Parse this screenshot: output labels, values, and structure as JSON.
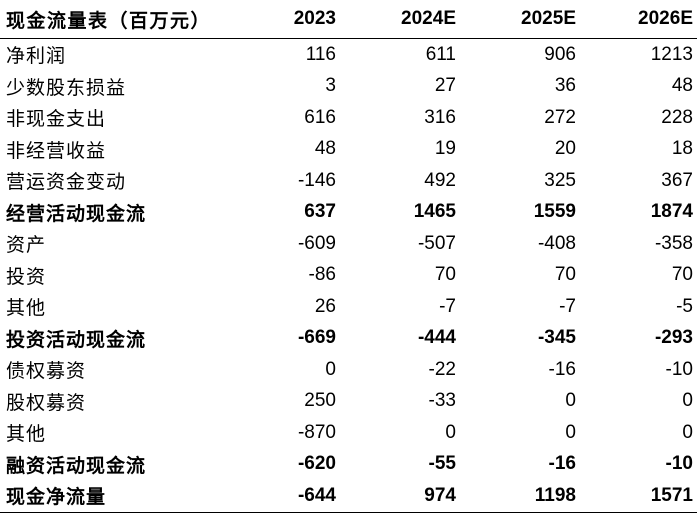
{
  "header": {
    "label": "现金流量表（百万元）",
    "years": [
      "2023",
      "2024E",
      "2025E",
      "2026E"
    ]
  },
  "rows": [
    {
      "label": "净利润",
      "values": [
        "116",
        "611",
        "906",
        "1213"
      ],
      "bold": false
    },
    {
      "label": "少数股东损益",
      "values": [
        "3",
        "27",
        "36",
        "48"
      ],
      "bold": false
    },
    {
      "label": "非现金支出",
      "values": [
        "616",
        "316",
        "272",
        "228"
      ],
      "bold": false
    },
    {
      "label": "非经营收益",
      "values": [
        "48",
        "19",
        "20",
        "18"
      ],
      "bold": false
    },
    {
      "label": "营运资金变动",
      "values": [
        "-146",
        "492",
        "325",
        "367"
      ],
      "bold": false
    },
    {
      "label": "经营活动现金流",
      "values": [
        "637",
        "1465",
        "1559",
        "1874"
      ],
      "bold": true
    },
    {
      "label": "资产",
      "values": [
        "-609",
        "-507",
        "-408",
        "-358"
      ],
      "bold": false
    },
    {
      "label": "投资",
      "values": [
        "-86",
        "70",
        "70",
        "70"
      ],
      "bold": false
    },
    {
      "label": "其他",
      "values": [
        "26",
        "-7",
        "-7",
        "-5"
      ],
      "bold": false
    },
    {
      "label": "投资活动现金流",
      "values": [
        "-669",
        "-444",
        "-345",
        "-293"
      ],
      "bold": true
    },
    {
      "label": "债权募资",
      "values": [
        "0",
        "-22",
        "-16",
        "-10"
      ],
      "bold": false
    },
    {
      "label": "股权募资",
      "values": [
        "250",
        "-33",
        "0",
        "0"
      ],
      "bold": false
    },
    {
      "label": "其他",
      "values": [
        "-870",
        "0",
        "0",
        "0"
      ],
      "bold": false
    },
    {
      "label": "融资活动现金流",
      "values": [
        "-620",
        "-55",
        "-16",
        "-10"
      ],
      "bold": true
    },
    {
      "label": "现金净流量",
      "values": [
        "-644",
        "974",
        "1198",
        "1571"
      ],
      "bold": true
    }
  ]
}
